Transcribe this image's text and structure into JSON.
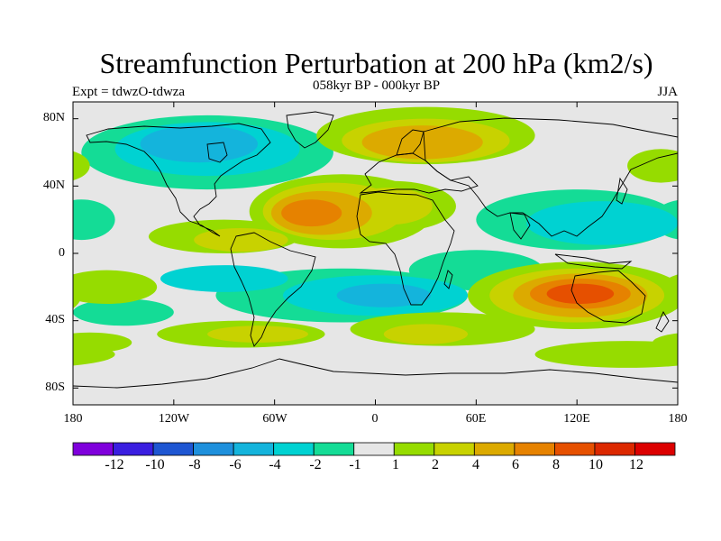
{
  "title": "Streamfunction Perturbation at 200 hPa (km2/s)",
  "subtitle": "058kyr BP - 000kyr BP",
  "left_label": "Expt = tdwzO-tdwza",
  "right_label": "JJA",
  "lat_labels": [
    "80N",
    "40N",
    "0",
    "40S",
    "80S"
  ],
  "lon_labels": [
    "180",
    "120W",
    "60W",
    "0",
    "60E",
    "120E",
    "180"
  ],
  "colorbar": {
    "labels": [
      "-12",
      "-10",
      "-8",
      "-6",
      "-4",
      "-2",
      "-1",
      "1",
      "2",
      "4",
      "6",
      "8",
      "10",
      "12"
    ],
    "colors": [
      "#7f00dc",
      "#3a1ee0",
      "#1e56d2",
      "#1e90dc",
      "#14b4dc",
      "#00d2d2",
      "#14dc96",
      "#e6e6e6",
      "#96dc00",
      "#c8d200",
      "#dcaa00",
      "#e68200",
      "#e65000",
      "#dc2800",
      "#dc0000"
    ]
  },
  "map_data": {
    "type": "filled_contour_map",
    "x_range": [
      -180,
      180
    ],
    "y_range": [
      -90,
      90
    ],
    "background_level": "#e6e6e6",
    "blobs": [
      {
        "lon": -20,
        "lat": 25,
        "rx": 55,
        "ry": 22,
        "level": 1
      },
      {
        "lon": -25,
        "lat": 25,
        "rx": 42,
        "ry": 17,
        "level": 2
      },
      {
        "lon": -32,
        "lat": 24,
        "rx": 30,
        "ry": 13,
        "level": 3
      },
      {
        "lon": -38,
        "lat": 24,
        "rx": 18,
        "ry": 8,
        "level": 4
      },
      {
        "lon": 10,
        "lat": 28,
        "rx": 38,
        "ry": 15,
        "level": 1
      },
      {
        "lon": 8,
        "lat": 28,
        "rx": 26,
        "ry": 11,
        "level": 2
      },
      {
        "lon": -90,
        "lat": 10,
        "rx": 45,
        "ry": 10,
        "level": 1
      },
      {
        "lon": -80,
        "lat": 8,
        "rx": 28,
        "ry": 7,
        "level": 2
      },
      {
        "lon": 30,
        "lat": 70,
        "rx": 65,
        "ry": 17,
        "level": 1
      },
      {
        "lon": 30,
        "lat": 67,
        "rx": 50,
        "ry": 13,
        "level": 2
      },
      {
        "lon": 28,
        "lat": 66,
        "rx": 36,
        "ry": 10,
        "level": 3
      },
      {
        "lon": 120,
        "lat": -25,
        "rx": 65,
        "ry": 20,
        "level": 1
      },
      {
        "lon": 120,
        "lat": -25,
        "rx": 52,
        "ry": 16,
        "level": 2
      },
      {
        "lon": 122,
        "lat": -25,
        "rx": 40,
        "ry": 13,
        "level": 3
      },
      {
        "lon": 122,
        "lat": -24,
        "rx": 30,
        "ry": 9,
        "level": 4
      },
      {
        "lon": 122,
        "lat": -24,
        "rx": 20,
        "ry": 6,
        "level": 5
      },
      {
        "lon": -160,
        "lat": -20,
        "rx": 30,
        "ry": 10,
        "level": 1
      },
      {
        "lon": 40,
        "lat": -45,
        "rx": 55,
        "ry": 10,
        "level": 1
      },
      {
        "lon": 30,
        "lat": -48,
        "rx": 25,
        "ry": 6,
        "level": 2
      },
      {
        "lon": -80,
        "lat": -48,
        "rx": 50,
        "ry": 8,
        "level": 1
      },
      {
        "lon": -70,
        "lat": -48,
        "rx": 30,
        "ry": 5,
        "level": 2
      },
      {
        "lon": -170,
        "lat": -53,
        "rx": 25,
        "ry": 6,
        "level": 1
      },
      {
        "lon": 150,
        "lat": -60,
        "rx": 55,
        "ry": 8,
        "level": 1
      },
      {
        "lon": -100,
        "lat": 60,
        "rx": 75,
        "ry": 22,
        "level": -1
      },
      {
        "lon": -100,
        "lat": 62,
        "rx": 55,
        "ry": 16,
        "level": -2
      },
      {
        "lon": -105,
        "lat": 65,
        "rx": 35,
        "ry": 11,
        "level": -3
      },
      {
        "lon": -20,
        "lat": -25,
        "rx": 75,
        "ry": 16,
        "level": -1
      },
      {
        "lon": 0,
        "lat": -25,
        "rx": 55,
        "ry": 12,
        "level": -2
      },
      {
        "lon": 5,
        "lat": -25,
        "rx": 28,
        "ry": 7,
        "level": -3
      },
      {
        "lon": -90,
        "lat": -15,
        "rx": 38,
        "ry": 8,
        "level": -2
      },
      {
        "lon": 120,
        "lat": 20,
        "rx": 60,
        "ry": 18,
        "level": -1
      },
      {
        "lon": 135,
        "lat": 18,
        "rx": 45,
        "ry": 13,
        "level": -2
      },
      {
        "lon": -175,
        "lat": 20,
        "rx": 20,
        "ry": 12,
        "level": -1
      },
      {
        "lon": 60,
        "lat": -10,
        "rx": 40,
        "ry": 12,
        "level": -1
      },
      {
        "lon": -150,
        "lat": -35,
        "rx": 30,
        "ry": 8,
        "level": -1
      },
      {
        "lon": 170,
        "lat": 52,
        "rx": 20,
        "ry": 10,
        "level": 1
      }
    ]
  }
}
